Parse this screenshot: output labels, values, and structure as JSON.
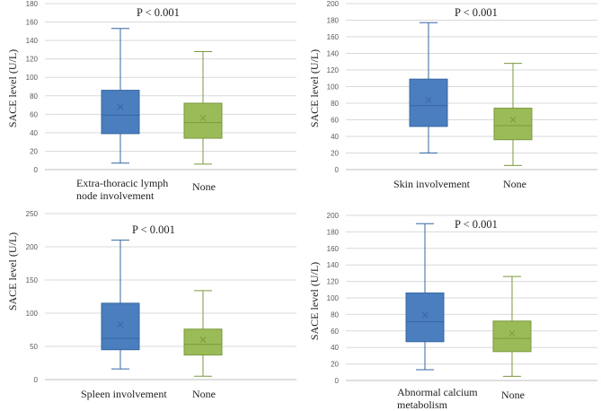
{
  "colors": {
    "blue_fill": "#4a7ebf",
    "blue_line": "#35679f",
    "green_fill": "#9bbb59",
    "green_line": "#7a9a3e",
    "grid": "#d9d9d9",
    "axis": "#bfbfbf"
  },
  "chart_data": [
    {
      "type": "box",
      "title": "",
      "annotation": "P < 0.001",
      "ylabel": "SACE level (U/L)",
      "ylim": [
        0,
        180
      ],
      "yticks": [
        0,
        20,
        40,
        60,
        80,
        100,
        120,
        140,
        160,
        180
      ],
      "categories": [
        "Extra-thoracic lymph node involvement",
        "None"
      ],
      "category_lines": [
        [
          "Extra-thoracic lymph",
          "node involvement"
        ],
        [
          "None"
        ]
      ],
      "boxes": [
        {
          "min": 7,
          "q1": 39,
          "median": 59,
          "q3": 86,
          "max": 153,
          "mean": 68
        },
        {
          "min": 6,
          "q1": 34,
          "median": 51,
          "q3": 72,
          "max": 128,
          "mean": 56
        }
      ]
    },
    {
      "type": "box",
      "title": "",
      "annotation": "P < 0.001",
      "ylabel": "SACE level (U/L)",
      "ylim": [
        0,
        200
      ],
      "yticks": [
        0,
        20,
        40,
        60,
        80,
        100,
        120,
        140,
        160,
        180,
        200
      ],
      "categories": [
        "Skin involvement",
        "None"
      ],
      "category_lines": [
        [
          "Skin involvement"
        ],
        [
          "None"
        ]
      ],
      "boxes": [
        {
          "min": 20,
          "q1": 52,
          "median": 77,
          "q3": 109,
          "max": 177,
          "mean": 84
        },
        {
          "min": 5,
          "q1": 36,
          "median": 53,
          "q3": 74,
          "max": 128,
          "mean": 60
        }
      ]
    },
    {
      "type": "box",
      "title": "",
      "annotation": "P < 0.001",
      "ylabel": "SACE level (U/L)",
      "ylim": [
        0,
        250
      ],
      "yticks": [
        0,
        50,
        100,
        150,
        200,
        250
      ],
      "categories": [
        "Spleen involvement",
        "None"
      ],
      "category_lines": [
        [
          "Spleen involvement"
        ],
        [
          "None"
        ]
      ],
      "boxes": [
        {
          "min": 16,
          "q1": 45,
          "median": 62,
          "q3": 115,
          "max": 210,
          "mean": 83
        },
        {
          "min": 5,
          "q1": 37,
          "median": 53,
          "q3": 76,
          "max": 134,
          "mean": 60
        }
      ]
    },
    {
      "type": "box",
      "title": "",
      "annotation": "P < 0.001",
      "ylabel": "SACE level (U/L)",
      "ylim": [
        0,
        200
      ],
      "yticks": [
        0,
        20,
        40,
        60,
        80,
        100,
        120,
        140,
        160,
        180,
        200
      ],
      "categories": [
        "Abnormal calcium metabolism",
        "None"
      ],
      "category_lines": [
        [
          "Abnormal calcium",
          "metabolism"
        ],
        [
          "None"
        ]
      ],
      "boxes": [
        {
          "min": 13,
          "q1": 47,
          "median": 71,
          "q3": 106,
          "max": 190,
          "mean": 79
        },
        {
          "min": 5,
          "q1": 35,
          "median": 51,
          "q3": 72,
          "max": 126,
          "mean": 57
        }
      ]
    }
  ]
}
